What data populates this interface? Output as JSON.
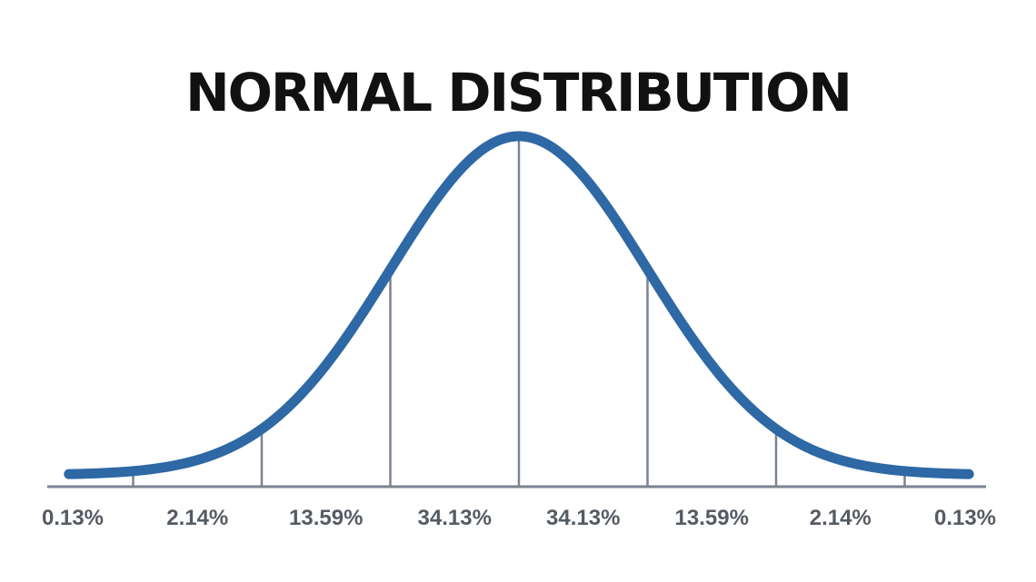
{
  "chart_data": {
    "type": "line",
    "title": "NORMAL DISTRIBUTION",
    "xlabel": "",
    "ylabel": "",
    "xlim": [
      -3.5,
      3.5
    ],
    "grid": false,
    "legend": "none",
    "sigma_markers": [
      -3,
      -2,
      -1,
      0,
      1,
      2,
      3
    ],
    "regions": [
      {
        "from": -3.5,
        "to": -3,
        "label": "0.13%"
      },
      {
        "from": -3,
        "to": -2,
        "label": "2.14%"
      },
      {
        "from": -2,
        "to": -1,
        "label": "13.59%"
      },
      {
        "from": -1,
        "to": 0,
        "label": "34.13%"
      },
      {
        "from": 0,
        "to": 1,
        "label": "34.13%"
      },
      {
        "from": 1,
        "to": 2,
        "label": "13.59%"
      },
      {
        "from": 2,
        "to": 3,
        "label": "2.14%"
      },
      {
        "from": 3,
        "to": 3.5,
        "label": "0.13%"
      }
    ],
    "colors": {
      "curve": "#2e68a5",
      "lines": "#7a8391",
      "labels": "#555b63",
      "title": "#111111"
    }
  }
}
